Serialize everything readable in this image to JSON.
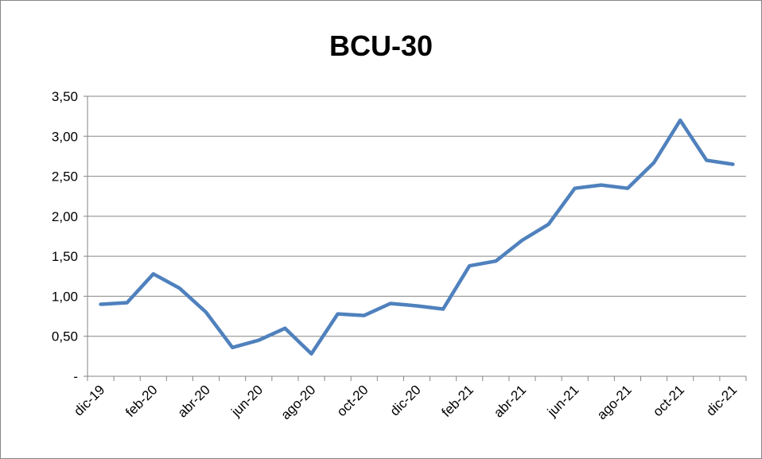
{
  "chart_data": {
    "type": "line",
    "title": "BCU-30",
    "categories": [
      "dic-19",
      null,
      "feb-20",
      null,
      "abr-20",
      null,
      "jun-20",
      null,
      "ago-20",
      null,
      "oct-20",
      null,
      "dic-20",
      null,
      "feb-21",
      null,
      "abr-21",
      null,
      "jun-21",
      null,
      "ago-21",
      null,
      "oct-21",
      null,
      "dic-21"
    ],
    "series": [
      {
        "name": "BCU-30",
        "color": "#4f81bd",
        "values": [
          0.9,
          0.92,
          1.28,
          1.1,
          0.8,
          0.36,
          0.45,
          0.6,
          0.28,
          0.78,
          0.76,
          0.91,
          0.88,
          0.84,
          1.38,
          1.44,
          1.7,
          1.9,
          2.35,
          2.39,
          2.35,
          2.67,
          3.2,
          2.7,
          2.65
        ]
      }
    ],
    "ylim": [
      0,
      3.5
    ],
    "yticks": [
      {
        "value": 0,
        "label": "-"
      },
      {
        "value": 0.5,
        "label": "0,50"
      },
      {
        "value": 1,
        "label": "1,00"
      },
      {
        "value": 1.5,
        "label": "1,50"
      },
      {
        "value": 2,
        "label": "2,00"
      },
      {
        "value": 2.5,
        "label": "2,50"
      },
      {
        "value": 3,
        "label": "3,00"
      },
      {
        "value": 3.5,
        "label": "3,50"
      }
    ],
    "grid": true,
    "legend": false
  }
}
